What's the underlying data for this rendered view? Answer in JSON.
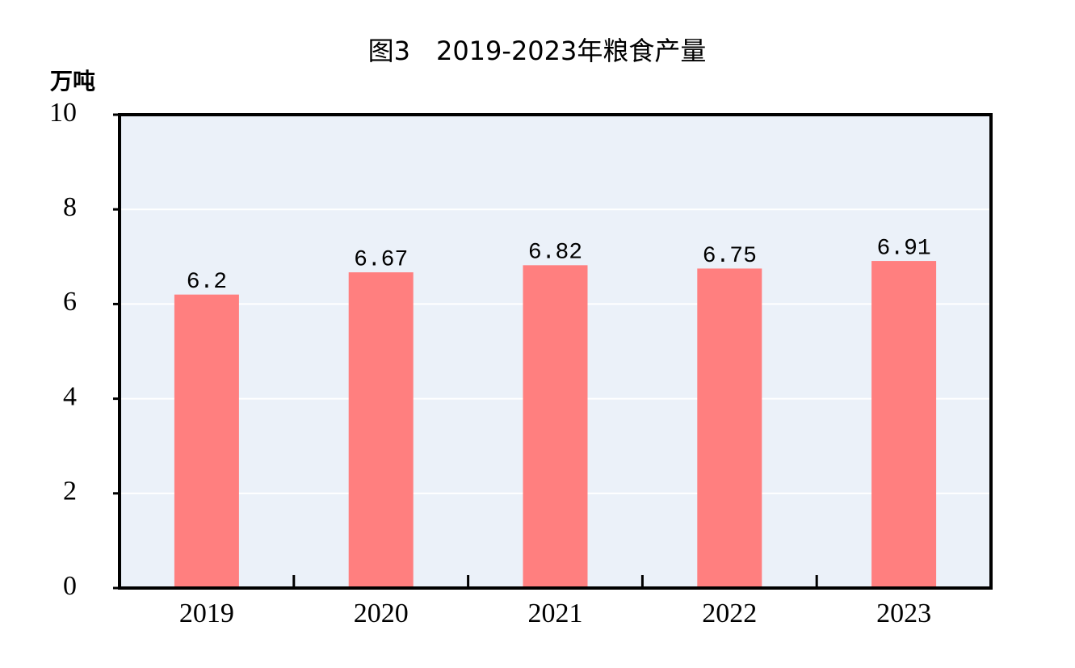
{
  "chart_data": {
    "type": "bar",
    "title": "图3　2019-2023年粮食产量",
    "y_label": "万吨",
    "categories": [
      "2019",
      "2020",
      "2021",
      "2022",
      "2023"
    ],
    "values": [
      6.2,
      6.67,
      6.82,
      6.75,
      6.91
    ],
    "color": "#ff7f7f",
    "ylim": [
      0,
      10
    ],
    "yticks": [
      0,
      2,
      4,
      6,
      8,
      10
    ],
    "grid": true
  }
}
